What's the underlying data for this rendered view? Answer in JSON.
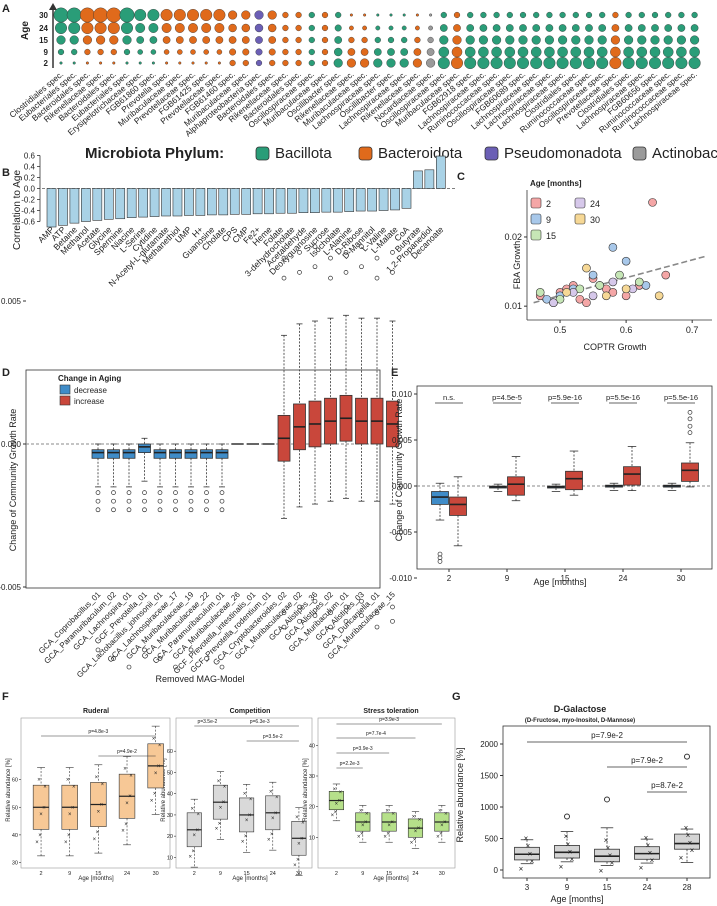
{
  "panelA": {
    "label": "A",
    "ylabel": "Age",
    "ages": [
      "30",
      "24",
      "15",
      "9",
      "2"
    ],
    "taxa": [
      "Clostridiales spec.",
      "Eubacteriales spec.",
      "Bacteroidales spec.",
      "Rikenellaceae spec.",
      "Bacteroidales spec.",
      "Eubacteriales spec.",
      "Erysipelotrichaceae spec.",
      "FGB61860 spec.",
      "Prevotella spec.",
      "Muribaculaceae spec.",
      "Prevotellaceae spec.",
      "FGB61425 spec.",
      "Prevotellaceae spec.",
      "FGB61460 spec.",
      "Muribaculaceae spec.",
      "Alphaproteobacteria spec.",
      "Bacteroidales spec.",
      "Rikenellaceae spec.",
      "Bacteroidales spec.",
      "Oscillospiraceae spec.",
      "Muribaculaceae spec.",
      "Oscillibacter spec.",
      "Rikenellaceae spec.",
      "Muribaculaceae spec.",
      "Lachnospiraceae spec.",
      "Oscillibacter spec.",
      "Lachnospiraceae spec.",
      "Rikenellaceae spec.",
      "Nocardiaceae spec.",
      "Oscillospiraceae spec.",
      "Muribaculaceae spec.",
      "FGB62918 spec.",
      "Lachnospiraceae spec.",
      "Ruminococcaceae spec.",
      "Oscillospiraceae spec.",
      "FGB60689 spec.",
      "Lachnospiraceae spec.",
      "Lachnospiraceae spec.",
      "Lachnospiraceae spec.",
      "Clostridiales spec.",
      "Ruminococcaceae spec.",
      "Oscillospiraceae spec.",
      "Prevotellaceae spec.",
      "Clostridiales spec.",
      "Lachnospiraceae spec.",
      "FGB60656 spec.",
      "Ruminococcaceae spec.",
      "Ruminococcaceae spec.",
      "Lachnospiraceae spec."
    ],
    "phyla": "BBDDDBBBDDDDDDDPDDDBDBDDBBBDABDBBBBBBBBBBBDBBBBBB",
    "size30": [
      5,
      5,
      5,
      5,
      5,
      5,
      4,
      4,
      4,
      4,
      4,
      4,
      4,
      3,
      3,
      3,
      3,
      2,
      2,
      2,
      2,
      2,
      1,
      1,
      1,
      1,
      1,
      1,
      1,
      2,
      2,
      2,
      2,
      2,
      2,
      2,
      2,
      2,
      2,
      2,
      2,
      2,
      2,
      2,
      2,
      2,
      2,
      2,
      2
    ],
    "size2": [
      1,
      1,
      1,
      1,
      1,
      1,
      1,
      1,
      1,
      1,
      1,
      1,
      1,
      2,
      2,
      2,
      2,
      2,
      2,
      2,
      2,
      3,
      3,
      3,
      3,
      3,
      3,
      3,
      3,
      4,
      4,
      4,
      4,
      4,
      4,
      4,
      4,
      4,
      4,
      4,
      4,
      4,
      4,
      4,
      4,
      4,
      4,
      4,
      4
    ]
  },
  "legend": {
    "title": "Microbiota Phylum:",
    "items": [
      "Bacillota",
      "Bacteroidota",
      "Pseudomonadota",
      "Actinobacteria"
    ],
    "colors": [
      "#2a9d78",
      "#e06a1b",
      "#6b5fb5",
      "#9a9a9a"
    ]
  },
  "panelB": {
    "label": "B",
    "ylabel": "Correlation to Age",
    "yticks": [
      "0.6",
      "0.4",
      "0.2",
      "0.0",
      "-0.2",
      "-0.4",
      "-0.6"
    ],
    "labels": [
      "AMP",
      "ATP",
      "Betaine",
      "Methanol",
      "Acetate",
      "Glycine",
      "Spermine",
      "Niacine",
      "L-Serine",
      "Cytidine",
      "N-Acetyl-L-glutamate",
      "Methanethiol",
      "UMP",
      "H+",
      "Guanosine",
      "Cholate",
      "CPS",
      "CMP",
      "Fe2+",
      "Heme",
      "Folate",
      "3-dehydrocholate",
      "Acetaldehyde",
      "Deoxyguanosine",
      "Sucrose",
      "Isocholate",
      "L-Alanine",
      "D-Ribose",
      "D-Mannitol",
      "L-Valine",
      "L-Malate",
      "CoA",
      "Butyrate",
      "1,2-Propanediol",
      "Decanoate"
    ],
    "values": [
      -0.7,
      -0.67,
      -0.63,
      -0.6,
      -0.58,
      -0.56,
      -0.55,
      -0.53,
      -0.52,
      -0.51,
      -0.5,
      -0.5,
      -0.49,
      -0.49,
      -0.48,
      -0.48,
      -0.47,
      -0.47,
      -0.46,
      -0.46,
      -0.45,
      -0.45,
      -0.44,
      -0.44,
      -0.43,
      -0.43,
      -0.42,
      -0.41,
      -0.41,
      -0.4,
      -0.39,
      -0.36,
      0.32,
      0.34,
      0.59
    ]
  },
  "panelC": {
    "label": "C",
    "title": "Age [months]",
    "xlabel": "COPTR Growth",
    "ylabel": "FBA Growth",
    "xticks": [
      "0.5",
      "0.6",
      "0.7"
    ],
    "yticks": [
      "0.01",
      "0.02"
    ],
    "legend": [
      "2",
      "24",
      "9",
      "30",
      "15"
    ],
    "colors": {
      "2": "#f4a6a6",
      "9": "#a8c8ea",
      "15": "#c6e6b6",
      "24": "#d6c8ea",
      "30": "#f6d896"
    },
    "x": [
      0.47,
      0.49,
      0.5,
      0.51,
      0.52,
      0.53,
      0.54,
      0.55,
      0.56,
      0.57,
      0.58,
      0.6,
      0.62,
      0.64,
      0.66,
      0.48,
      0.5,
      0.52,
      0.55,
      0.58,
      0.6,
      0.63,
      0.47,
      0.5,
      0.53,
      0.56,
      0.59,
      0.62,
      0.49,
      0.52,
      0.55,
      0.58,
      0.61,
      0.51,
      0.54,
      0.57,
      0.6,
      0.65
    ],
    "y": [
      0.0115,
      0.0105,
      0.012,
      0.0125,
      0.013,
      0.011,
      0.0105,
      0.014,
      0.013,
      0.0125,
      0.012,
      0.0115,
      0.013,
      0.025,
      0.0145,
      0.011,
      0.0115,
      0.0125,
      0.0145,
      0.0185,
      0.0165,
      0.013,
      0.012,
      0.011,
      0.0125,
      0.013,
      0.0145,
      0.0135,
      0.0105,
      0.012,
      0.0115,
      0.0135,
      0.0125,
      0.012,
      0.0155,
      0.0115,
      0.0125,
      0.0115
    ],
    "groups": [
      "2",
      "2",
      "2",
      "2",
      "2",
      "2",
      "2",
      "2",
      "2",
      "2",
      "2",
      "2",
      "2",
      "2",
      "2",
      "9",
      "9",
      "9",
      "9",
      "9",
      "9",
      "9",
      "15",
      "15",
      "15",
      "15",
      "15",
      "15",
      "24",
      "24",
      "24",
      "24",
      "24",
      "30",
      "30",
      "30",
      "30",
      "30"
    ]
  },
  "panelD": {
    "label": "D",
    "legend_title": "Change in Aging",
    "legend": [
      "decrease",
      "increase"
    ],
    "ylabel": "Change of Community Growth Rate",
    "xlabel": "Removed MAG-Model",
    "yticks": [
      "0.005",
      "0.000",
      "-0.005"
    ],
    "models": [
      "GCA_Coprobacillus_01",
      "GCA_Paramuribaculum_02",
      "GCA_Lachnospira_01",
      "GCF_Prevotella_01",
      "GCA_Lactobacillus_johnsonii_01",
      "GCA_Lachnospiraceae_17",
      "GCA_Muribaculaceae_19",
      "GCA_Muribaculaceae_22",
      "GCA_Paramuribaculum_01",
      "GCA_Muribaculaceae_26",
      "GCF_Prevotella_intestinalis_01",
      "GCF_Prevotella_rodentium_01",
      "GCA_Cryptobacteroides_02",
      "GCA_Muribaculaceae_02",
      "GCA_Alistipes_36",
      "GCA_Alistipes_02",
      "GCA_Muribaculum_01",
      "GCA_Alistipes_03",
      "GCA_Duncaniella_01",
      "GCA_Muribaculaceae_15"
    ],
    "medians": [
      -0.0003,
      -0.0003,
      -0.0003,
      -0.0001,
      -0.0003,
      -0.0003,
      -0.0003,
      -0.0003,
      -0.0003,
      0,
      0,
      0,
      0.0002,
      0.0006,
      0.0007,
      0.0008,
      0.0009,
      0.0008,
      0.0008,
      0.0007
    ],
    "dir": [
      "d",
      "d",
      "d",
      "d",
      "d",
      "d",
      "d",
      "d",
      "d",
      "n",
      "n",
      "n",
      "i",
      "i",
      "i",
      "i",
      "i",
      "i",
      "i",
      "i"
    ]
  },
  "panelE": {
    "label": "E",
    "ylabel": "Change of Community Growth Rate",
    "xlabel": "Age [months]",
    "ages": [
      "2",
      "9",
      "15",
      "24",
      "30"
    ],
    "yticks": [
      "0.010",
      "0.005",
      "0.000",
      "-0.005",
      "-0.010"
    ],
    "pvals": [
      "n.s.",
      "p=4.5e-5",
      "p=5.9e-16",
      "p=5.5e-16",
      "p=5.5e-16"
    ],
    "dec_median": [
      -0.0012,
      -0.0001,
      -0.0001,
      0,
      0
    ],
    "inc_median": [
      -0.002,
      0.0002,
      0.0008,
      0.0013,
      0.0017
    ]
  },
  "panelF": {
    "label": "F",
    "xlabel": "Age [months]",
    "ylabel": "Relative abundance [%]",
    "ages": [
      "2",
      "9",
      "15",
      "24",
      "30"
    ],
    "ruderal": {
      "title": "Ruderal",
      "pvals": [
        "p=4.8e-3",
        "p=4.9e-2"
      ],
      "yticks": [
        "60",
        "50",
        "40",
        "30"
      ],
      "medians": [
        50,
        50,
        51,
        54,
        65
      ]
    },
    "competition": {
      "title": "Competition",
      "pvals": [
        "p=3.5e-2",
        "p=6.3e-3",
        "p=3.5e-2"
      ],
      "yticks": [
        "60",
        "50",
        "40",
        "30",
        "20",
        "10"
      ],
      "medians": [
        23,
        36,
        30,
        31,
        19
      ]
    },
    "stress": {
      "title": "Stress toleration",
      "pvals": [
        "p=3.9e-3",
        "p=7.7e-4",
        "p=3.9e-3",
        "p=2.2e-3"
      ],
      "yticks": [
        "40",
        "30",
        "20",
        "10"
      ],
      "medians": [
        22,
        15,
        15,
        13,
        15
      ]
    }
  },
  "panelG": {
    "label": "G",
    "title": "D-Galactose",
    "subtitle": "(D-Fructose, myo-Inositol, D-Mannose)",
    "xlabel": "Age [months]",
    "ylabel": "Relative abundance [%]",
    "ages": [
      "3",
      "9",
      "15",
      "24",
      "28"
    ],
    "yticks": [
      "2000",
      "1500",
      "1000",
      "500",
      "0"
    ],
    "pvals": [
      "p=7.9e-2",
      "p=7.9e-2",
      "p=8.7e-2"
    ],
    "medians": [
      250,
      280,
      220,
      260,
      420
    ]
  }
}
